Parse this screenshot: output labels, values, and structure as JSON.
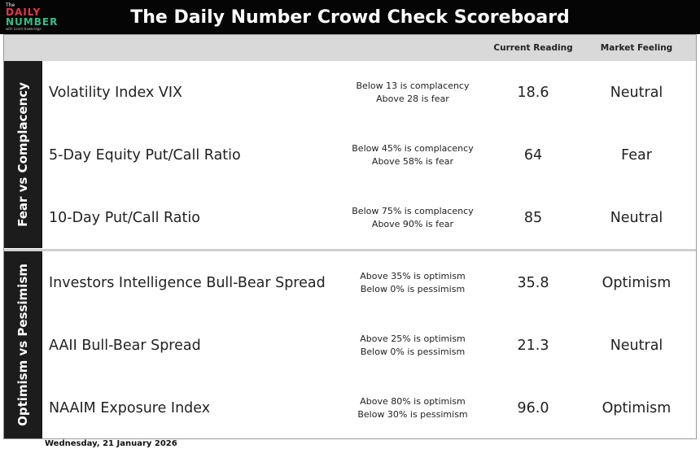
{
  "header": {
    "logo": {
      "small": "The",
      "line1": "DAILY",
      "line2": "NUMBER",
      "tagline": "with Grant Hawkridge"
    },
    "title": "The Daily Number Crowd Check Scoreboard"
  },
  "table": {
    "columns": [
      "Current Reading",
      "Market Feeling"
    ],
    "sections": [
      {
        "label": "Fear vs Complacency",
        "rows": [
          {
            "indicator": "Volatility Index VIX",
            "thresholds": [
              "Below 13 is complacency",
              "Above 28 is fear"
            ],
            "reading": "18.6",
            "feeling": "Neutral"
          },
          {
            "indicator": "5-Day Equity Put/Call Ratio",
            "thresholds": [
              "Below 45% is complacency",
              "Above 58% is fear"
            ],
            "reading": "64",
            "feeling": "Fear"
          },
          {
            "indicator": "10-Day Put/Call Ratio",
            "thresholds": [
              "Below 75% is complacency",
              "Above 90% is fear"
            ],
            "reading": "85",
            "feeling": "Neutral"
          }
        ]
      },
      {
        "label": "Optimism vs Pessimism",
        "rows": [
          {
            "indicator": "Investors Intelligence Bull-Bear Spread",
            "thresholds": [
              "Above 35% is optimism",
              "Below 0% is pessimism"
            ],
            "reading": "35.8",
            "feeling": "Optimism"
          },
          {
            "indicator": "AAII Bull-Bear Spread",
            "thresholds": [
              "Above 25% is optimism",
              "Below 0% is pessimism"
            ],
            "reading": "21.3",
            "feeling": "Neutral"
          },
          {
            "indicator": "NAAIM Exposure Index",
            "thresholds": [
              "Above 80% is optimism",
              "Below 30% is pessimism"
            ],
            "reading": "96.0",
            "feeling": "Optimism"
          }
        ]
      }
    ]
  },
  "footer": {
    "date": "Wednesday, 21 January 2026"
  }
}
